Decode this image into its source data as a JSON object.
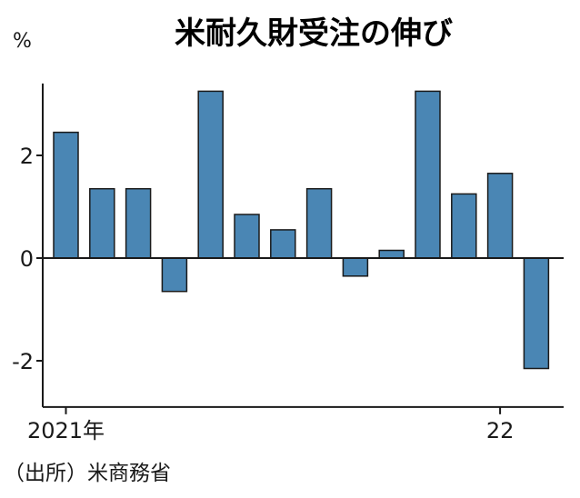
{
  "chart_data": {
    "type": "bar",
    "title": "米耐久財受注の伸び",
    "unit": "%",
    "source": "（出所）米商務省",
    "ylim": [
      -2.9,
      3.4
    ],
    "yticks": [
      2,
      0,
      -2
    ],
    "ytick_labels": [
      "2",
      "0",
      "-2"
    ],
    "xtick_labels": [
      "2021年",
      "22"
    ],
    "bar_color": "#4a86b4",
    "values": [
      2.45,
      1.35,
      1.35,
      -0.65,
      3.25,
      0.85,
      0.55,
      1.35,
      -0.35,
      0.15,
      3.25,
      1.25,
      1.65,
      -2.15
    ],
    "grid": false,
    "legend": "none"
  }
}
